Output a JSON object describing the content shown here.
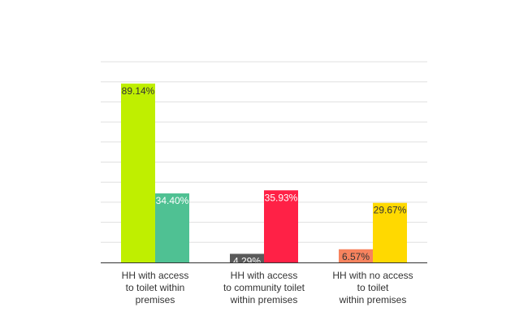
{
  "chart_data": {
    "type": "bar",
    "categories": [
      [
        "HH with access",
        "to toilet within",
        "premises"
      ],
      [
        "HH with access",
        "to community toilet",
        "within premises"
      ],
      [
        "HH with no access",
        "to toilet",
        "within premises"
      ]
    ],
    "bars": [
      [
        {
          "value": 89.14,
          "label": "89.14%",
          "color": "#bfef00",
          "label_color": "#333333"
        },
        {
          "value": 34.4,
          "label": "34.40%",
          "color": "#4fc193",
          "label_color": "#ffffff"
        }
      ],
      [
        {
          "value": 4.29,
          "label": "4.29%",
          "color": "#5a5a5a",
          "label_color": "#ffffff"
        },
        {
          "value": 35.93,
          "label": "35.93%",
          "color": "#ff2146",
          "label_color": "#ffffff"
        }
      ],
      [
        {
          "value": 6.57,
          "label": "6.57%",
          "color": "#f7835e",
          "label_color": "#333333"
        },
        {
          "value": 29.67,
          "label": "29.67%",
          "color": "#ffd900",
          "label_color": "#333333"
        }
      ]
    ],
    "ylim": [
      0,
      100
    ],
    "grid": true,
    "title": "",
    "xlabel": "",
    "ylabel": ""
  }
}
